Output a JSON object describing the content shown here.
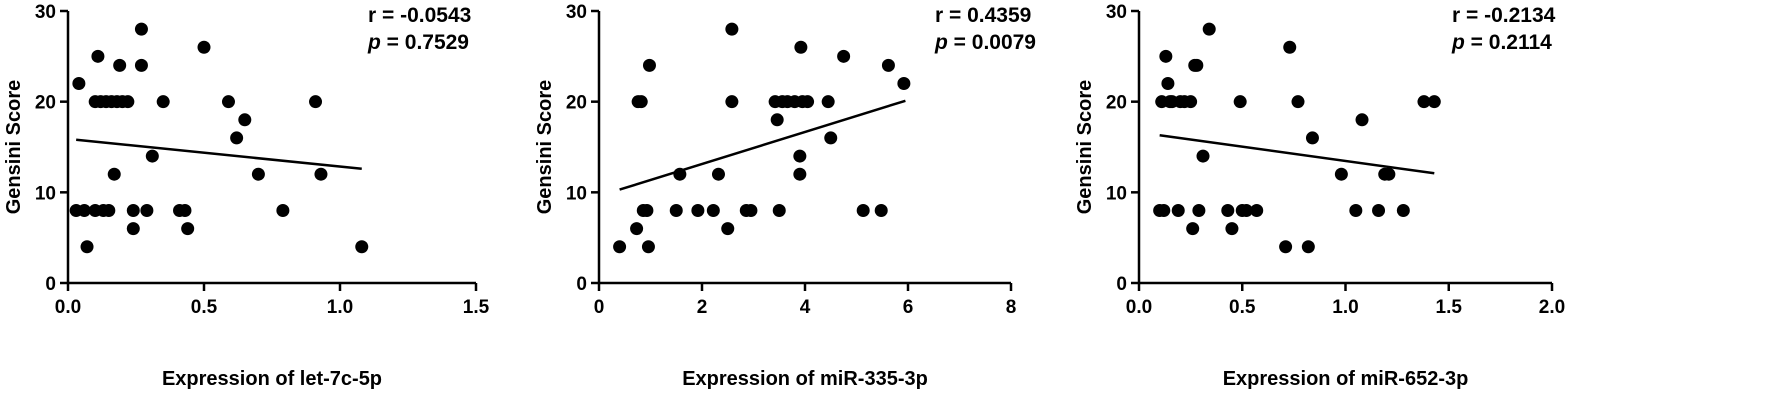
{
  "chart_data": [
    {
      "type": "scatter",
      "xlabel": "Expression of let-7c-5p",
      "ylabel": "Gensini Score",
      "xlim": [
        0,
        1.5
      ],
      "ylim": [
        0,
        30
      ],
      "xticks": [
        0,
        0.5,
        1,
        1.5
      ],
      "xtick_labels": [
        "0.0",
        "0.5",
        "1.0",
        "1.5"
      ],
      "yticks": [
        0,
        10,
        20,
        30
      ],
      "ytick_labels": [
        "0",
        "10",
        "20",
        "30"
      ],
      "stats": {
        "r_label": "r = -0.0543",
        "p_prefix": "p",
        "p_value": " = 0.7529"
      },
      "fit_line": {
        "x": [
          0.03,
          1.08
        ],
        "y": [
          15.8,
          12.6
        ]
      },
      "points": [
        [
          0.04,
          22
        ],
        [
          0.03,
          8
        ],
        [
          0.06,
          8
        ],
        [
          0.07,
          4
        ],
        [
          0.1,
          20
        ],
        [
          0.1,
          8
        ],
        [
          0.11,
          25
        ],
        [
          0.12,
          20
        ],
        [
          0.13,
          8
        ],
        [
          0.14,
          20
        ],
        [
          0.15,
          8
        ],
        [
          0.16,
          20
        ],
        [
          0.17,
          12
        ],
        [
          0.18,
          20
        ],
        [
          0.19,
          24
        ],
        [
          0.2,
          20
        ],
        [
          0.22,
          20
        ],
        [
          0.24,
          8
        ],
        [
          0.24,
          6
        ],
        [
          0.27,
          24
        ],
        [
          0.27,
          28
        ],
        [
          0.29,
          8
        ],
        [
          0.31,
          14
        ],
        [
          0.35,
          20
        ],
        [
          0.41,
          8
        ],
        [
          0.43,
          8
        ],
        [
          0.44,
          6
        ],
        [
          0.5,
          26
        ],
        [
          0.59,
          20
        ],
        [
          0.62,
          16
        ],
        [
          0.65,
          18
        ],
        [
          0.7,
          12
        ],
        [
          0.79,
          8
        ],
        [
          0.91,
          20
        ],
        [
          0.93,
          12
        ],
        [
          1.08,
          4
        ]
      ]
    },
    {
      "type": "scatter",
      "xlabel": "Expression of miR-335-3p",
      "ylabel": "Gensini Score",
      "xlim": [
        0,
        8
      ],
      "ylim": [
        0,
        30
      ],
      "xticks": [
        0,
        2,
        4,
        6,
        8
      ],
      "xtick_labels": [
        "0",
        "2",
        "4",
        "6",
        "8"
      ],
      "yticks": [
        0,
        10,
        20,
        30
      ],
      "ytick_labels": [
        "0",
        "10",
        "20",
        "30"
      ],
      "stats": {
        "r_label": "r = 0.4359",
        "p_prefix": "p",
        "p_value": " = 0.0079"
      },
      "fit_line": {
        "x": [
          0.4,
          5.95
        ],
        "y": [
          10.3,
          20.1
        ]
      },
      "points": [
        [
          0.4,
          4
        ],
        [
          0.73,
          6
        ],
        [
          0.76,
          20
        ],
        [
          0.82,
          20
        ],
        [
          0.86,
          8
        ],
        [
          0.93,
          8
        ],
        [
          0.96,
          4
        ],
        [
          0.98,
          24
        ],
        [
          1.5,
          8
        ],
        [
          1.57,
          12
        ],
        [
          1.92,
          8
        ],
        [
          2.22,
          8
        ],
        [
          2.32,
          12
        ],
        [
          2.5,
          6
        ],
        [
          2.58,
          28
        ],
        [
          2.58,
          20
        ],
        [
          2.86,
          8
        ],
        [
          2.95,
          8
        ],
        [
          3.42,
          20
        ],
        [
          3.46,
          18
        ],
        [
          3.5,
          8
        ],
        [
          3.56,
          20
        ],
        [
          3.66,
          20
        ],
        [
          3.8,
          20
        ],
        [
          3.9,
          14
        ],
        [
          3.9,
          12
        ],
        [
          3.92,
          26
        ],
        [
          3.95,
          20
        ],
        [
          4.05,
          20
        ],
        [
          4.45,
          20
        ],
        [
          4.5,
          16
        ],
        [
          4.75,
          25
        ],
        [
          5.13,
          8
        ],
        [
          5.48,
          8
        ],
        [
          5.62,
          24
        ],
        [
          5.92,
          22
        ]
      ]
    },
    {
      "type": "scatter",
      "xlabel": "Expression of miR-652-3p",
      "ylabel": "Gensini Score",
      "xlim": [
        0,
        2
      ],
      "ylim": [
        0,
        30
      ],
      "xticks": [
        0,
        0.5,
        1,
        1.5,
        2
      ],
      "xtick_labels": [
        "0.0",
        "0.5",
        "1.0",
        "1.5",
        "2.0"
      ],
      "yticks": [
        0,
        10,
        20,
        30
      ],
      "ytick_labels": [
        "0",
        "10",
        "20",
        "30"
      ],
      "stats": {
        "r_label": "r = -0.2134",
        "p_prefix": "p",
        "p_value": " = 0.2114"
      },
      "fit_line": {
        "x": [
          0.1,
          1.43
        ],
        "y": [
          16.3,
          12.1
        ]
      },
      "points": [
        [
          0.1,
          8
        ],
        [
          0.11,
          20
        ],
        [
          0.12,
          8
        ],
        [
          0.13,
          25
        ],
        [
          0.14,
          22
        ],
        [
          0.15,
          20
        ],
        [
          0.16,
          20
        ],
        [
          0.19,
          8
        ],
        [
          0.2,
          20
        ],
        [
          0.22,
          20
        ],
        [
          0.25,
          20
        ],
        [
          0.26,
          6
        ],
        [
          0.27,
          24
        ],
        [
          0.28,
          24
        ],
        [
          0.29,
          8
        ],
        [
          0.31,
          14
        ],
        [
          0.34,
          28
        ],
        [
          0.43,
          8
        ],
        [
          0.45,
          6
        ],
        [
          0.49,
          20
        ],
        [
          0.5,
          8
        ],
        [
          0.52,
          8
        ],
        [
          0.57,
          8
        ],
        [
          0.71,
          4
        ],
        [
          0.73,
          26
        ],
        [
          0.77,
          20
        ],
        [
          0.82,
          4
        ],
        [
          0.84,
          16
        ],
        [
          0.98,
          12
        ],
        [
          1.05,
          8
        ],
        [
          1.08,
          18
        ],
        [
          1.16,
          8
        ],
        [
          1.19,
          12
        ],
        [
          1.21,
          12
        ],
        [
          1.28,
          8
        ],
        [
          1.38,
          20
        ],
        [
          1.43,
          20
        ]
      ]
    }
  ]
}
